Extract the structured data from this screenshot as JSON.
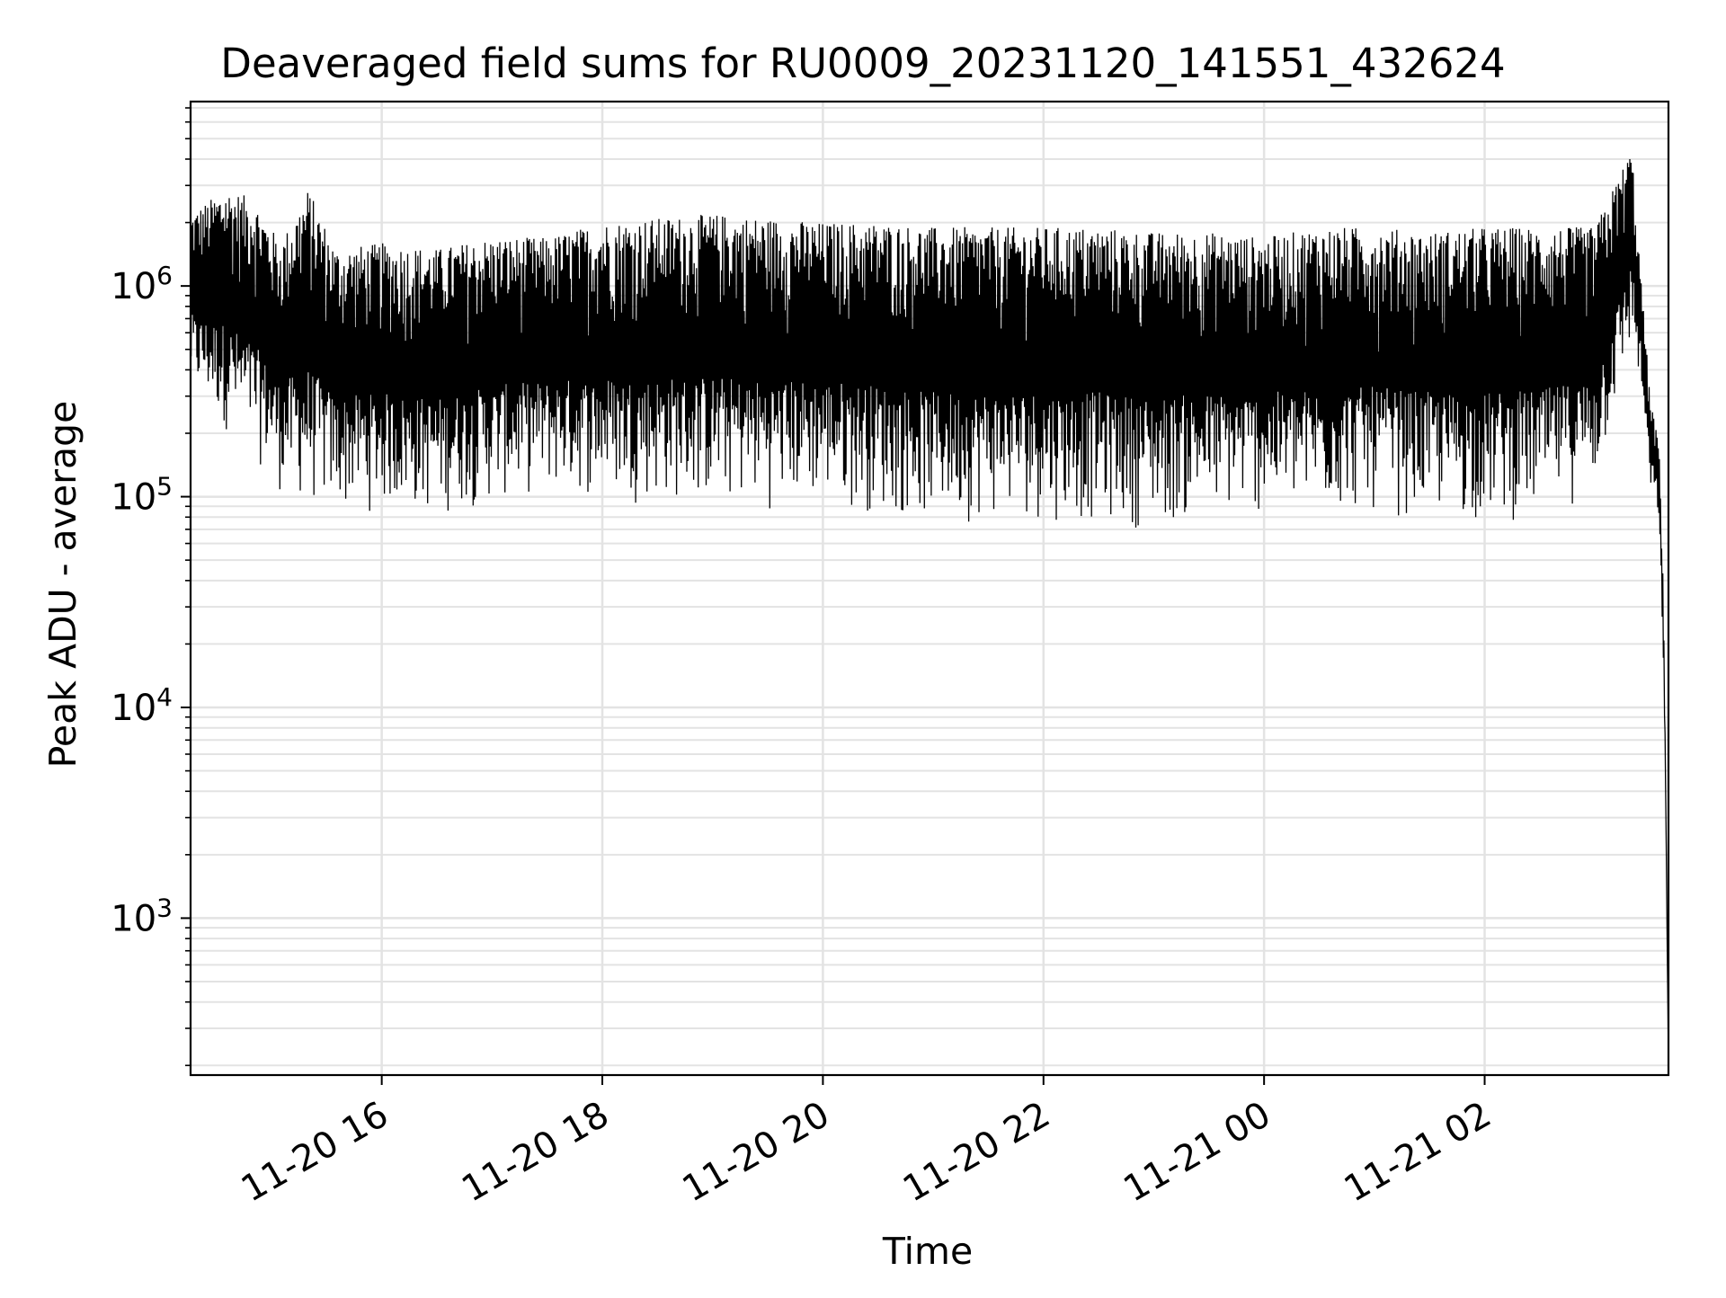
{
  "chart_data": {
    "type": "line",
    "title": "Deaveraged field sums for RU0009_20231120_141551_432624",
    "xlabel": "Time",
    "ylabel": "Peak ADU - average",
    "yscale": "log",
    "grid": true,
    "line_color": "#000000",
    "grid_color": "#e3e3e3",
    "xlim": [
      "2023-11-20 14:16",
      "2023-11-21 03:40"
    ],
    "ylim": [
      180,
      7500000
    ],
    "x_ticks": [
      {
        "value": "2023-11-20 16:00",
        "label": "11-20 16"
      },
      {
        "value": "2023-11-20 18:00",
        "label": "11-20 18"
      },
      {
        "value": "2023-11-20 20:00",
        "label": "11-20 20"
      },
      {
        "value": "2023-11-20 22:00",
        "label": "11-20 22"
      },
      {
        "value": "2023-11-21 00:00",
        "label": "11-21 00"
      },
      {
        "value": "2023-11-21 02:00",
        "label": "11-21 02"
      }
    ],
    "y_ticks": [
      {
        "value": 1000,
        "base": "10",
        "exp": "3"
      },
      {
        "value": 10000,
        "base": "10",
        "exp": "4"
      },
      {
        "value": 100000,
        "base": "10",
        "exp": "5"
      },
      {
        "value": 1000000,
        "base": "10",
        "exp": "6"
      }
    ],
    "series": [
      {
        "x": [
          "2023-11-20 14:16",
          "2023-11-20 14:35",
          "2023-11-20 14:50",
          "2023-11-20 15:05",
          "2023-11-20 15:20",
          "2023-11-20 15:35",
          "2023-11-20 16:00",
          "2023-11-20 16:30",
          "2023-11-20 17:00",
          "2023-11-20 17:30",
          "2023-11-20 18:00",
          "2023-11-20 18:30",
          "2023-11-20 19:00",
          "2023-11-20 19:30",
          "2023-11-20 20:00",
          "2023-11-20 20:30",
          "2023-11-20 21:00",
          "2023-11-20 21:30",
          "2023-11-20 22:00",
          "2023-11-20 22:30",
          "2023-11-20 23:00",
          "2023-11-20 23:30",
          "2023-11-21 00:00",
          "2023-11-21 00:30",
          "2023-11-21 01:00",
          "2023-11-21 01:30",
          "2023-11-21 02:00",
          "2023-11-21 02:30",
          "2023-11-21 03:00",
          "2023-11-21 03:20",
          "2023-11-21 03:25",
          "2023-11-21 03:30",
          "2023-11-21 03:35",
          "2023-11-21 03:38",
          "2023-11-21 03:40"
        ],
        "upper": [
          2200000,
          2900000,
          2600000,
          1600000,
          2900000,
          1500000,
          1600000,
          1500000,
          1700000,
          1700000,
          2000000,
          2100000,
          2200000,
          2100000,
          2000000,
          2000000,
          1900000,
          1900000,
          1900000,
          1900000,
          1800000,
          1800000,
          1700000,
          1900000,
          1900000,
          1800000,
          1900000,
          1900000,
          1900000,
          4500000,
          1100000,
          300000,
          170000,
          20000,
          200
        ],
        "lower": [
          300000,
          200000,
          150000,
          100000,
          85000,
          80000,
          82000,
          78000,
          90000,
          100000,
          95000,
          90000,
          88000,
          85000,
          90000,
          80000,
          72000,
          75000,
          75000,
          72000,
          68000,
          75000,
          78000,
          78000,
          80000,
          75000,
          72000,
          75000,
          100000,
          500000,
          300000,
          100000,
          75000,
          5000,
          200
        ]
      }
    ]
  }
}
